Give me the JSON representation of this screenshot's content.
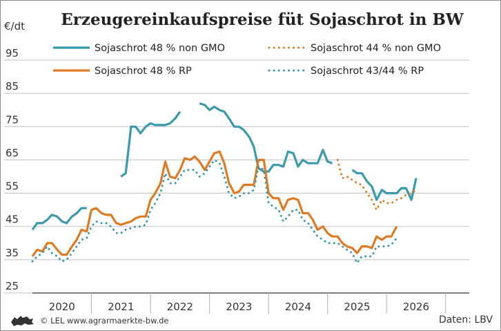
{
  "chart_data": {
    "type": "line",
    "title": "Erzeugereinkaufspreise füt Sojaschrot in BW",
    "ylabel": "€/dt",
    "ylim": [
      25,
      100
    ],
    "yticks": [
      25,
      35,
      45,
      55,
      65,
      75,
      85,
      95
    ],
    "xlim": [
      2019.5,
      2026.9
    ],
    "x_tick_labels": [
      {
        "label": "2020",
        "x": 2020.0
      },
      {
        "label": "2021",
        "x": 2021.0
      },
      {
        "label": "2022",
        "x": 2022.0
      },
      {
        "label": "2023",
        "x": 2023.0
      },
      {
        "label": "2024",
        "x": 2024.0
      },
      {
        "label": "2025",
        "x": 2025.0
      },
      {
        "label": "2026",
        "x": 2026.0
      }
    ],
    "year_boundaries": [
      2020.5,
      2021.5,
      2022.5,
      2023.5,
      2024.5,
      2025.5,
      2026.5
    ],
    "grid": "horizontal",
    "legend_position": "top",
    "credit": "© LEL www.agrarmaerkte-bw.de",
    "source": "Daten: LBV",
    "series": [
      {
        "name": "Sojaschrot 48 % non GMO",
        "color": "#3a9aac",
        "style": "solid",
        "points": [
          [
            2019.5,
            44
          ],
          [
            2019.58,
            46
          ],
          [
            2019.67,
            46
          ],
          [
            2019.75,
            47
          ],
          [
            2019.83,
            48.5
          ],
          [
            2019.92,
            48
          ],
          [
            2020.0,
            46.5
          ],
          [
            2020.08,
            46
          ],
          [
            2020.17,
            48
          ],
          [
            2020.25,
            49
          ],
          [
            2020.33,
            50.5
          ],
          [
            2020.42,
            50.5
          ],
          null,
          [
            2021.0,
            60
          ],
          [
            2021.08,
            61
          ],
          [
            2021.17,
            75
          ],
          [
            2021.25,
            75
          ],
          [
            2021.33,
            73
          ],
          [
            2021.42,
            75
          ],
          [
            2021.5,
            76
          ],
          [
            2021.58,
            75.5
          ],
          [
            2021.67,
            75.5
          ],
          [
            2021.75,
            75.5
          ],
          [
            2021.83,
            76
          ],
          [
            2021.92,
            77.5
          ],
          [
            2022.0,
            79.5
          ],
          null,
          [
            2022.33,
            82
          ],
          [
            2022.42,
            81.5
          ],
          [
            2022.5,
            80
          ],
          [
            2022.58,
            81
          ],
          [
            2022.67,
            80
          ],
          [
            2022.75,
            79.5
          ],
          [
            2022.83,
            77.5
          ],
          [
            2022.92,
            75
          ],
          [
            2023.0,
            75
          ],
          [
            2023.08,
            74
          ],
          [
            2023.17,
            72
          ],
          [
            2023.25,
            69
          ],
          [
            2023.33,
            62.5
          ],
          [
            2023.42,
            61.5
          ],
          [
            2023.5,
            61.5
          ],
          [
            2023.58,
            63.5
          ],
          [
            2023.67,
            63.5
          ],
          [
            2023.75,
            63
          ],
          [
            2023.83,
            67.5
          ],
          [
            2023.92,
            67
          ],
          [
            2024.0,
            63
          ],
          [
            2024.08,
            65
          ],
          [
            2024.17,
            64
          ],
          [
            2024.25,
            64
          ],
          [
            2024.33,
            64
          ],
          [
            2024.42,
            68
          ],
          [
            2024.5,
            64.5
          ],
          [
            2024.58,
            64
          ],
          null,
          [
            2024.92,
            62
          ],
          [
            2025.0,
            61
          ],
          [
            2025.08,
            61
          ],
          [
            2025.17,
            58.5
          ],
          [
            2025.25,
            57
          ],
          [
            2025.33,
            53
          ],
          [
            2025.42,
            56
          ],
          [
            2025.5,
            55
          ],
          [
            2025.58,
            55
          ],
          [
            2025.67,
            55
          ],
          [
            2025.75,
            56.5
          ],
          [
            2025.83,
            56.5
          ],
          [
            2025.92,
            53
          ],
          [
            2026.0,
            59.5
          ]
        ]
      },
      {
        "name": "Sojaschrot 44 % non GMO",
        "color": "#e07a22",
        "style": "dotted",
        "points": [
          [
            2024.67,
            65
          ],
          [
            2024.75,
            59.5
          ],
          [
            2024.83,
            60
          ],
          [
            2024.92,
            59
          ],
          [
            2025.0,
            58
          ],
          [
            2025.08,
            57.5
          ],
          [
            2025.17,
            55
          ],
          [
            2025.25,
            53
          ],
          [
            2025.33,
            50
          ],
          [
            2025.42,
            53
          ],
          [
            2025.5,
            52
          ],
          [
            2025.58,
            52
          ],
          [
            2025.67,
            53
          ],
          [
            2025.75,
            53.5
          ],
          [
            2025.83,
            54.5
          ],
          [
            2025.92,
            55
          ],
          [
            2026.0,
            56
          ]
        ]
      },
      {
        "name": "Sojaschrot 48 % RP",
        "color": "#e07a22",
        "style": "solid",
        "points": [
          [
            2019.5,
            36
          ],
          [
            2019.58,
            38
          ],
          [
            2019.67,
            37.5
          ],
          [
            2019.75,
            40
          ],
          [
            2019.83,
            40
          ],
          [
            2019.92,
            38
          ],
          [
            2020.0,
            36.5
          ],
          [
            2020.08,
            36.5
          ],
          [
            2020.17,
            39
          ],
          [
            2020.25,
            41
          ],
          [
            2020.33,
            44
          ],
          [
            2020.42,
            43.5
          ],
          [
            2020.5,
            50
          ],
          [
            2020.58,
            50.5
          ],
          [
            2020.67,
            49
          ],
          [
            2020.75,
            48.5
          ],
          [
            2020.83,
            48.5
          ],
          [
            2020.92,
            46
          ],
          [
            2021.0,
            45.5
          ],
          [
            2021.08,
            46
          ],
          [
            2021.17,
            46.5
          ],
          [
            2021.25,
            47.5
          ],
          [
            2021.33,
            48
          ],
          [
            2021.42,
            48
          ],
          [
            2021.5,
            53
          ],
          [
            2021.58,
            55
          ],
          [
            2021.67,
            58
          ],
          [
            2021.75,
            64.5
          ],
          [
            2021.83,
            60
          ],
          [
            2021.92,
            59.5
          ],
          [
            2022.0,
            62
          ],
          [
            2022.08,
            65.5
          ],
          [
            2022.17,
            65
          ],
          [
            2022.25,
            66
          ],
          [
            2022.33,
            64.5
          ],
          [
            2022.42,
            62
          ],
          [
            2022.5,
            64.5
          ],
          [
            2022.58,
            67
          ],
          [
            2022.67,
            67.5
          ],
          [
            2022.75,
            64
          ],
          [
            2022.83,
            58
          ],
          [
            2022.92,
            55
          ],
          [
            2023.0,
            55.5
          ],
          [
            2023.08,
            57.5
          ],
          [
            2023.17,
            57.5
          ],
          [
            2023.25,
            57.5
          ],
          [
            2023.33,
            65
          ],
          [
            2023.42,
            65
          ],
          [
            2023.5,
            55
          ],
          [
            2023.58,
            53.5
          ],
          [
            2023.67,
            53.5
          ],
          [
            2023.75,
            50
          ],
          [
            2023.83,
            53
          ],
          [
            2023.92,
            53.5
          ],
          [
            2024.0,
            53
          ],
          [
            2024.08,
            49
          ],
          [
            2024.17,
            49
          ],
          [
            2024.25,
            47
          ],
          [
            2024.33,
            44
          ],
          [
            2024.42,
            45
          ],
          [
            2024.5,
            43
          ],
          [
            2024.58,
            42
          ],
          [
            2024.67,
            42
          ],
          [
            2024.75,
            40
          ],
          [
            2024.83,
            39
          ],
          [
            2024.92,
            38.5
          ],
          [
            2025.0,
            37
          ],
          [
            2025.08,
            39
          ],
          [
            2025.17,
            39
          ],
          [
            2025.25,
            38.5
          ],
          [
            2025.33,
            42
          ],
          [
            2025.42,
            41
          ],
          [
            2025.5,
            42
          ],
          [
            2025.58,
            42
          ],
          [
            2025.67,
            45
          ]
        ]
      },
      {
        "name": "Sojaschrot 43/44 % RP",
        "color": "#3a9aac",
        "style": "dotted",
        "points": [
          [
            2019.5,
            34.5
          ],
          [
            2019.58,
            36
          ],
          [
            2019.67,
            37
          ],
          [
            2019.75,
            39
          ],
          [
            2019.83,
            37
          ],
          [
            2019.92,
            36
          ],
          [
            2020.0,
            34.5
          ],
          [
            2020.08,
            35
          ],
          [
            2020.17,
            37
          ],
          [
            2020.25,
            39
          ],
          [
            2020.33,
            41
          ],
          [
            2020.42,
            41.5
          ],
          [
            2020.5,
            45
          ],
          [
            2020.58,
            46.5
          ],
          [
            2020.67,
            46
          ],
          [
            2020.75,
            46
          ],
          [
            2020.83,
            45
          ],
          [
            2020.92,
            43
          ],
          [
            2021.0,
            43
          ],
          [
            2021.08,
            44
          ],
          [
            2021.17,
            44.5
          ],
          [
            2021.25,
            45
          ],
          [
            2021.33,
            45
          ],
          [
            2021.42,
            45.5
          ],
          [
            2021.5,
            50
          ],
          [
            2021.58,
            52
          ],
          [
            2021.67,
            55
          ],
          [
            2021.75,
            61
          ],
          [
            2021.83,
            58
          ],
          [
            2021.92,
            58
          ],
          [
            2022.0,
            60
          ],
          [
            2022.08,
            62
          ],
          [
            2022.17,
            62
          ],
          [
            2022.25,
            62
          ],
          [
            2022.33,
            60
          ],
          [
            2022.42,
            61
          ],
          [
            2022.5,
            63
          ],
          [
            2022.58,
            65
          ],
          [
            2022.67,
            64
          ],
          [
            2022.75,
            60
          ],
          [
            2022.83,
            55
          ],
          [
            2022.92,
            53.5
          ],
          [
            2023.0,
            54
          ],
          [
            2023.08,
            55
          ],
          [
            2023.17,
            55
          ],
          [
            2023.25,
            56
          ],
          [
            2023.33,
            63
          ],
          [
            2023.42,
            62
          ],
          [
            2023.5,
            52
          ],
          [
            2023.58,
            51
          ],
          [
            2023.67,
            50
          ],
          [
            2023.75,
            46.5
          ],
          [
            2023.83,
            48
          ],
          [
            2023.92,
            50
          ],
          [
            2024.0,
            50
          ],
          [
            2024.08,
            47
          ],
          [
            2024.17,
            46
          ],
          [
            2024.25,
            44
          ],
          [
            2024.33,
            42
          ],
          [
            2024.42,
            41
          ],
          [
            2024.5,
            40
          ],
          [
            2024.58,
            40
          ],
          [
            2024.67,
            40
          ],
          [
            2024.75,
            39
          ],
          [
            2024.83,
            38
          ],
          [
            2024.92,
            37
          ],
          [
            2025.0,
            34
          ],
          [
            2025.08,
            36
          ],
          [
            2025.17,
            36
          ],
          [
            2025.25,
            36
          ],
          [
            2025.33,
            39
          ],
          [
            2025.42,
            39
          ],
          [
            2025.5,
            39
          ],
          [
            2025.58,
            39.5
          ],
          [
            2025.67,
            41.5
          ]
        ]
      }
    ]
  }
}
